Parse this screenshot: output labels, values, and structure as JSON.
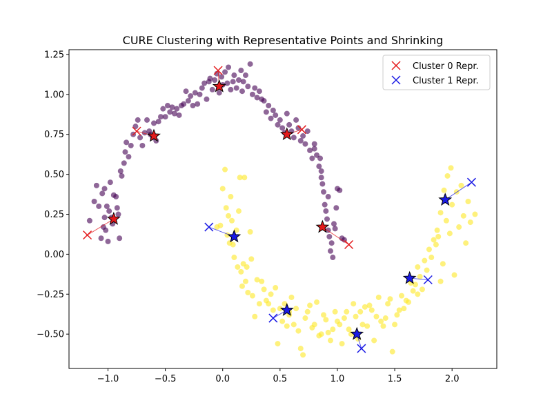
{
  "chart_data": {
    "type": "scatter",
    "title": "CURE Clustering with Representative Points and Shrinking",
    "xlabel": "",
    "ylabel": "",
    "xlim": [
      -1.34,
      2.39
    ],
    "ylim": [
      -0.715,
      1.28
    ],
    "xticks": [
      -1.0,
      -0.5,
      0.0,
      0.5,
      1.0,
      1.5,
      2.0
    ],
    "xtick_labels": [
      "−1.0",
      "−0.5",
      "0.0",
      "0.5",
      "1.0",
      "1.5",
      "2.0"
    ],
    "yticks": [
      -0.5,
      -0.25,
      0.0,
      0.25,
      0.5,
      0.75,
      1.0,
      1.25
    ],
    "ytick_labels": [
      "−0.50",
      "−0.25",
      "0.00",
      "0.25",
      "0.50",
      "0.75",
      "1.00",
      "1.25"
    ],
    "grid": false,
    "legend_position": "top-right",
    "colors": {
      "cluster_0": "#440154",
      "cluster_1": "#fde725",
      "cluster_0_repr": "#e41a1c",
      "cluster_1_repr": "#1a1ae4",
      "shrunk_marker": "#000000"
    },
    "series": [
      {
        "name": "",
        "cluster": 0,
        "points": [
          [
            -1.16,
            0.21
          ],
          [
            -1.12,
            0.33
          ],
          [
            -1.1,
            0.43
          ],
          [
            -1.08,
            0.3
          ],
          [
            -1.06,
            0.1
          ],
          [
            -1.05,
            0.38
          ],
          [
            -1.04,
            0.17
          ],
          [
            -1.03,
            0.41
          ],
          [
            -1.03,
            0.23
          ],
          [
            -1.02,
            0.15
          ],
          [
            -1.01,
            0.3
          ],
          [
            -1.0,
            0.08
          ],
          [
            -0.99,
            0.27
          ],
          [
            -0.98,
            0.45
          ],
          [
            -0.97,
            0.23
          ],
          [
            -0.96,
            0.19
          ],
          [
            -0.95,
            0.37
          ],
          [
            -0.93,
            0.36
          ],
          [
            -0.92,
            0.29
          ],
          [
            -0.91,
            0.25
          ],
          [
            -0.9,
            0.1
          ],
          [
            -0.89,
            0.52
          ],
          [
            -0.88,
            0.49
          ],
          [
            -0.86,
            0.57
          ],
          [
            -0.85,
            0.64
          ],
          [
            -0.84,
            0.7
          ],
          [
            -0.82,
            0.61
          ],
          [
            -0.8,
            0.68
          ],
          [
            -0.78,
            0.75
          ],
          [
            -0.76,
            0.8
          ],
          [
            -0.74,
            0.84
          ],
          [
            -0.72,
            0.73
          ],
          [
            -0.7,
            0.68
          ],
          [
            -0.68,
            0.76
          ],
          [
            -0.66,
            0.84
          ],
          [
            -0.64,
            0.77
          ],
          [
            -0.63,
            0.75
          ],
          [
            -0.61,
            0.73
          ],
          [
            -0.6,
            0.82
          ],
          [
            -0.58,
            0.71
          ],
          [
            -0.56,
            0.83
          ],
          [
            -0.54,
            0.86
          ],
          [
            -0.52,
            0.91
          ],
          [
            -0.5,
            0.86
          ],
          [
            -0.48,
            0.93
          ],
          [
            -0.46,
            0.89
          ],
          [
            -0.44,
            0.92
          ],
          [
            -0.42,
            0.88
          ],
          [
            -0.4,
            0.91
          ],
          [
            -0.38,
            0.87
          ],
          [
            -0.36,
            0.93
          ],
          [
            -0.34,
            0.94
          ],
          [
            -0.32,
            1.02
          ],
          [
            -0.3,
            0.96
          ],
          [
            -0.28,
            0.99
          ],
          [
            -0.26,
            0.93
          ],
          [
            -0.24,
            1.01
          ],
          [
            -0.22,
            0.94
          ],
          [
            -0.2,
            1.0
          ],
          [
            -0.18,
            1.04
          ],
          [
            -0.16,
            1.07
          ],
          [
            -0.14,
            0.97
          ],
          [
            -0.12,
            1.08
          ],
          [
            -0.11,
            1.1
          ],
          [
            -0.09,
            1.03
          ],
          [
            -0.07,
            1.09
          ],
          [
            -0.05,
            1.13
          ],
          [
            -0.03,
            1.01
          ],
          [
            -0.01,
            1.11
          ],
          [
            0.0,
            1.06
          ],
          [
            0.02,
            1.14
          ],
          [
            0.04,
            1.07
          ],
          [
            0.05,
            1.17
          ],
          [
            0.07,
            1.03
          ],
          [
            0.09,
            1.08
          ],
          [
            0.1,
            1.12
          ],
          [
            0.12,
            1.04
          ],
          [
            0.14,
            1.09
          ],
          [
            0.16,
            1.15
          ],
          [
            0.17,
            1.02
          ],
          [
            0.18,
            1.08
          ],
          [
            0.2,
            1.12
          ],
          [
            0.22,
            1.05
          ],
          [
            0.24,
            1.19
          ],
          [
            0.26,
            1.0
          ],
          [
            0.28,
            1.04
          ],
          [
            0.3,
            0.98
          ],
          [
            0.32,
            1.02
          ],
          [
            0.34,
            0.97
          ],
          [
            0.36,
            0.96
          ],
          [
            0.38,
            0.89
          ],
          [
            0.4,
            0.93
          ],
          [
            0.42,
            0.85
          ],
          [
            0.44,
            0.9
          ],
          [
            0.46,
            0.87
          ],
          [
            0.48,
            0.81
          ],
          [
            0.5,
            0.84
          ],
          [
            0.52,
            0.79
          ],
          [
            0.54,
            0.76
          ],
          [
            0.56,
            0.88
          ],
          [
            0.58,
            0.81
          ],
          [
            0.6,
            0.77
          ],
          [
            0.62,
            0.73
          ],
          [
            0.64,
            0.84
          ],
          [
            0.66,
            0.79
          ],
          [
            0.68,
            0.71
          ],
          [
            0.7,
            0.74
          ],
          [
            0.72,
            0.69
          ],
          [
            0.74,
            0.77
          ],
          [
            0.76,
            0.65
          ],
          [
            0.78,
            0.6
          ],
          [
            0.8,
            0.69
          ],
          [
            0.82,
            0.62
          ],
          [
            0.84,
            0.55
          ],
          [
            0.85,
            0.6
          ],
          [
            0.86,
            0.52
          ],
          [
            0.87,
            0.44
          ],
          [
            0.88,
            0.39
          ],
          [
            0.89,
            0.31
          ],
          [
            0.9,
            0.27
          ],
          [
            0.91,
            0.22
          ],
          [
            0.92,
            0.15
          ],
          [
            0.93,
            0.11
          ],
          [
            0.94,
            0.02
          ],
          [
            0.95,
            0.07
          ],
          [
            0.96,
            -0.02
          ],
          [
            0.97,
            0.19
          ],
          [
            0.98,
            0.16
          ],
          [
            0.99,
            0.29
          ],
          [
            1.0,
            0.41
          ],
          [
            1.02,
            0.4
          ],
          [
            1.04,
            0.1
          ],
          [
            1.06,
            0.09
          ],
          [
            0.92,
            0.36
          ],
          [
            0.86,
            0.48
          ],
          [
            0.8,
            0.66
          ]
        ]
      },
      {
        "name": "",
        "cluster": 1,
        "points": [
          [
            -0.05,
            0.17
          ],
          [
            -0.02,
            0.18
          ],
          [
            0.0,
            0.41
          ],
          [
            0.02,
            0.53
          ],
          [
            0.03,
            0.29
          ],
          [
            0.04,
            0.12
          ],
          [
            0.05,
            0.24
          ],
          [
            0.06,
            0.07
          ],
          [
            0.07,
            0.36
          ],
          [
            0.08,
            0.21
          ],
          [
            0.09,
            0.06
          ],
          [
            0.1,
            -0.02
          ],
          [
            0.12,
            0.15
          ],
          [
            0.13,
            -0.08
          ],
          [
            0.14,
            0.27
          ],
          [
            0.15,
            0.48
          ],
          [
            0.16,
            -0.11
          ],
          [
            0.17,
            -0.2
          ],
          [
            0.18,
            -0.06
          ],
          [
            0.19,
            0.48
          ],
          [
            0.2,
            -0.17
          ],
          [
            0.21,
            -0.08
          ],
          [
            0.22,
            -0.24
          ],
          [
            0.24,
            0.14
          ],
          [
            0.25,
            -0.03
          ],
          [
            0.26,
            -0.26
          ],
          [
            0.28,
            -0.39
          ],
          [
            0.3,
            -0.16
          ],
          [
            0.32,
            -0.31
          ],
          [
            0.34,
            -0.17
          ],
          [
            0.36,
            -0.22
          ],
          [
            0.38,
            -0.29
          ],
          [
            0.4,
            -0.31
          ],
          [
            0.42,
            -0.25
          ],
          [
            0.44,
            -0.35
          ],
          [
            0.46,
            -0.21
          ],
          [
            0.48,
            -0.56
          ],
          [
            0.5,
            -0.34
          ],
          [
            0.52,
            -0.42
          ],
          [
            0.54,
            -0.31
          ],
          [
            0.56,
            -0.45
          ],
          [
            0.58,
            -0.38
          ],
          [
            0.6,
            -0.27
          ],
          [
            0.62,
            -0.44
          ],
          [
            0.64,
            -0.34
          ],
          [
            0.66,
            -0.48
          ],
          [
            0.68,
            -0.59
          ],
          [
            0.7,
            -0.63
          ],
          [
            0.72,
            -0.4
          ],
          [
            0.74,
            -0.36
          ],
          [
            0.76,
            -0.32
          ],
          [
            0.78,
            -0.46
          ],
          [
            0.8,
            -0.44
          ],
          [
            0.82,
            -0.3
          ],
          [
            0.84,
            -0.51
          ],
          [
            0.86,
            -0.5
          ],
          [
            0.88,
            -0.38
          ],
          [
            0.9,
            -0.41
          ],
          [
            0.92,
            -0.49
          ],
          [
            0.94,
            -0.54
          ],
          [
            0.96,
            -0.47
          ],
          [
            0.98,
            -0.36
          ],
          [
            1.0,
            -0.42
          ],
          [
            1.02,
            -0.44
          ],
          [
            1.04,
            -0.56
          ],
          [
            1.06,
            -0.4
          ],
          [
            1.08,
            -0.36
          ],
          [
            1.1,
            -0.47
          ],
          [
            1.12,
            -0.5
          ],
          [
            1.14,
            -0.31
          ],
          [
            1.16,
            -0.39
          ],
          [
            1.18,
            -0.53
          ],
          [
            1.2,
            -0.36
          ],
          [
            1.22,
            -0.44
          ],
          [
            1.24,
            -0.33
          ],
          [
            1.26,
            -0.45
          ],
          [
            1.28,
            -0.32
          ],
          [
            1.3,
            -0.35
          ],
          [
            1.32,
            -0.54
          ],
          [
            1.34,
            -0.39
          ],
          [
            1.36,
            -0.27
          ],
          [
            1.38,
            -0.42
          ],
          [
            1.4,
            -0.45
          ],
          [
            1.42,
            -0.4
          ],
          [
            1.44,
            -0.31
          ],
          [
            1.46,
            -0.28
          ],
          [
            1.48,
            -0.61
          ],
          [
            1.5,
            -0.44
          ],
          [
            1.52,
            -0.38
          ],
          [
            1.54,
            -0.35
          ],
          [
            1.56,
            -0.26
          ],
          [
            1.58,
            -0.34
          ],
          [
            1.6,
            -0.29
          ],
          [
            1.62,
            -0.3
          ],
          [
            1.64,
            -0.18
          ],
          [
            1.66,
            -0.23
          ],
          [
            1.68,
            -0.19
          ],
          [
            1.7,
            -0.08
          ],
          [
            1.72,
            -0.14
          ],
          [
            1.74,
            -0.22
          ],
          [
            1.76,
            -0.04
          ],
          [
            1.78,
            -0.1
          ],
          [
            1.8,
            0.03
          ],
          [
            1.82,
            -0.02
          ],
          [
            1.84,
            0.09
          ],
          [
            1.86,
            0.06
          ],
          [
            1.87,
            0.15
          ],
          [
            1.88,
            0.11
          ],
          [
            1.9,
            0.26
          ],
          [
            1.92,
            -0.06
          ],
          [
            1.93,
            0.4
          ],
          [
            1.95,
            0.21
          ],
          [
            1.96,
            0.49
          ],
          [
            1.98,
            0.13
          ],
          [
            1.99,
            0.54
          ],
          [
            2.0,
            0.31
          ],
          [
            2.02,
            -0.13
          ],
          [
            2.04,
            0.39
          ],
          [
            2.06,
            0.17
          ],
          [
            2.08,
            0.43
          ],
          [
            2.1,
            0.24
          ],
          [
            2.12,
            0.07
          ],
          [
            2.14,
            0.33
          ],
          [
            2.16,
            0.2
          ],
          [
            2.2,
            0.25
          ],
          [
            1.9,
            -0.17
          ],
          [
            1.7,
            -0.25
          ],
          [
            0.58,
            -0.36
          ]
        ]
      }
    ],
    "representatives": [
      {
        "cluster": 0,
        "original": [
          -1.18,
          0.12
        ],
        "shrunk": [
          -0.95,
          0.22
        ]
      },
      {
        "cluster": 0,
        "original": [
          -0.75,
          0.77
        ],
        "shrunk": [
          -0.6,
          0.74
        ]
      },
      {
        "cluster": 0,
        "original": [
          -0.04,
          1.15
        ],
        "shrunk": [
          -0.03,
          1.05
        ]
      },
      {
        "cluster": 0,
        "original": [
          0.69,
          0.78
        ],
        "shrunk": [
          0.56,
          0.75
        ]
      },
      {
        "cluster": 0,
        "original": [
          1.1,
          0.06
        ],
        "shrunk": [
          0.87,
          0.17
        ]
      },
      {
        "cluster": 1,
        "original": [
          -0.12,
          0.17
        ],
        "shrunk": [
          0.1,
          0.11
        ]
      },
      {
        "cluster": 1,
        "original": [
          0.44,
          -0.4
        ],
        "shrunk": [
          0.56,
          -0.35
        ]
      },
      {
        "cluster": 1,
        "original": [
          1.21,
          -0.59
        ],
        "shrunk": [
          1.17,
          -0.5
        ]
      },
      {
        "cluster": 1,
        "original": [
          1.79,
          -0.16
        ],
        "shrunk": [
          1.63,
          -0.15
        ]
      },
      {
        "cluster": 1,
        "original": [
          2.17,
          0.45
        ],
        "shrunk": [
          1.94,
          0.34
        ]
      }
    ],
    "legend": [
      {
        "label": "Cluster 0 Repr.",
        "marker": "x",
        "color": "#e41a1c"
      },
      {
        "label": "Cluster 1 Repr.",
        "marker": "x",
        "color": "#1a1ae4"
      }
    ]
  }
}
